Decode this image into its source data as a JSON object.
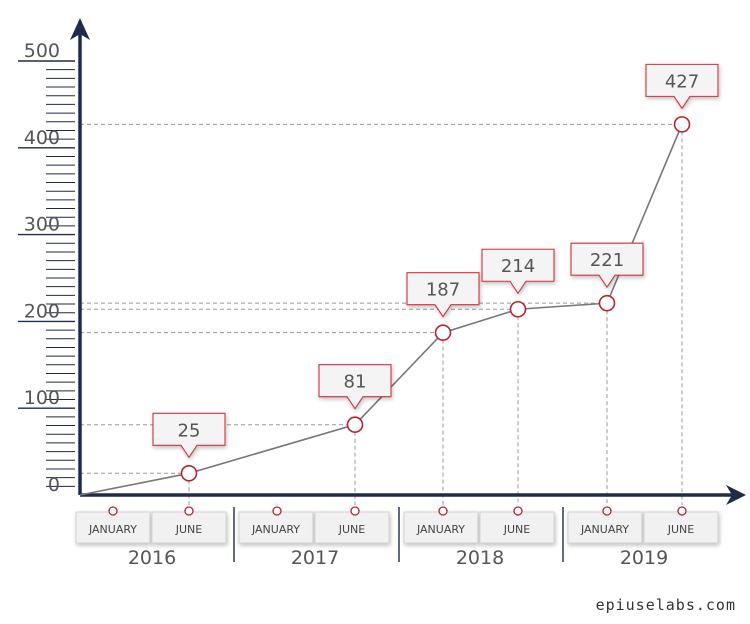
{
  "chart_data": {
    "type": "line",
    "x": [
      "2016 JUNE",
      "2017 JUNE",
      "2018 JANUARY",
      "2018 JUNE",
      "2019 JANUARY",
      "2019 JUNE"
    ],
    "values": [
      25,
      81,
      187,
      214,
      221,
      427
    ],
    "data_labels": [
      "25",
      "81",
      "187",
      "214",
      "221",
      "427"
    ],
    "ylim": [
      0,
      500
    ],
    "y_ticks": [
      "0",
      "100",
      "200",
      "300",
      "400",
      "500"
    ],
    "x_groups": [
      {
        "year": "2016",
        "months": [
          "JANUARY",
          "JUNE"
        ]
      },
      {
        "year": "2017",
        "months": [
          "JANUARY",
          "JUNE"
        ]
      },
      {
        "year": "2018",
        "months": [
          "JANUARY",
          "JUNE"
        ]
      },
      {
        "year": "2019",
        "months": [
          "JANUARY",
          "JUNE"
        ]
      }
    ],
    "title": "",
    "xlabel": "",
    "ylabel": "",
    "colors": {
      "axis": "#1f2a4d",
      "line": "#777777",
      "marker": "#b8232f",
      "guide": "#9a9a9a"
    }
  },
  "watermark": "epiuselabs.com"
}
